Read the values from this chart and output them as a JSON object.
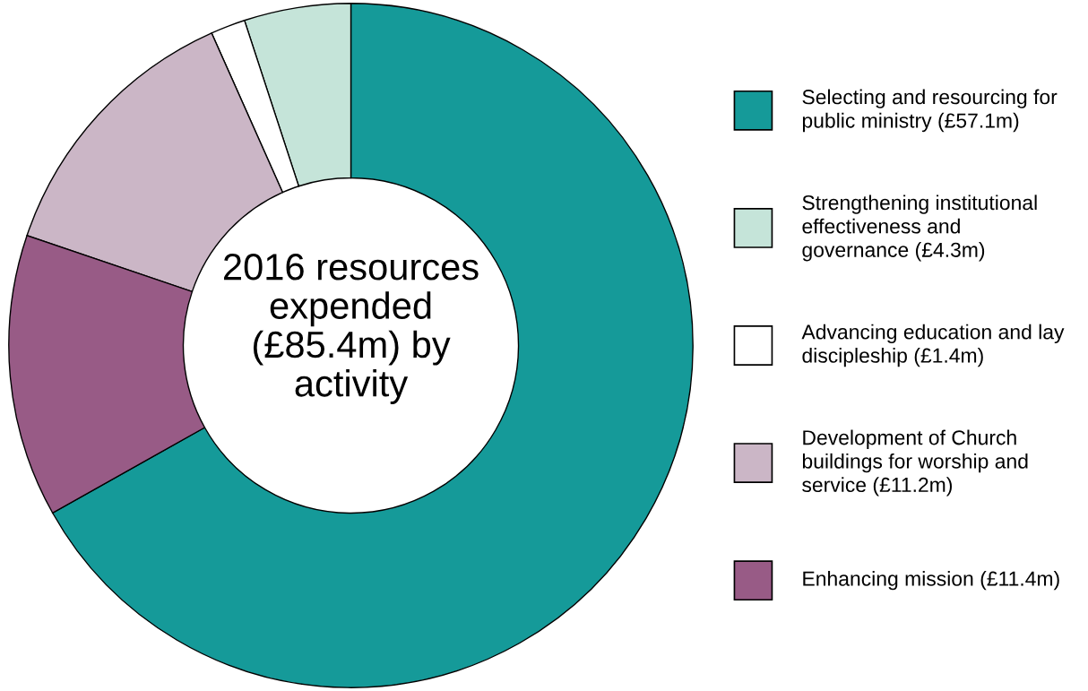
{
  "chart_data": {
    "type": "donut",
    "title": "2016 resources expended (£85.4m) by activity",
    "categories": [
      "Selecting and resourcing for public ministry (£57.1m)",
      "Strengthening institutional effectiveness and governance (£4.3m)",
      "Advancing education and lay discipleship (£1.4m)",
      "Development of Church buildings for worship and service (£11.2m)",
      "Enhancing mission (£11.4m)"
    ],
    "values": [
      57.1,
      4.3,
      1.4,
      11.2,
      11.4
    ],
    "colors": [
      "#159a99",
      "#c5e4d9",
      "#ffffff",
      "#cbb6c6",
      "#985b86"
    ],
    "legend": "right"
  }
}
